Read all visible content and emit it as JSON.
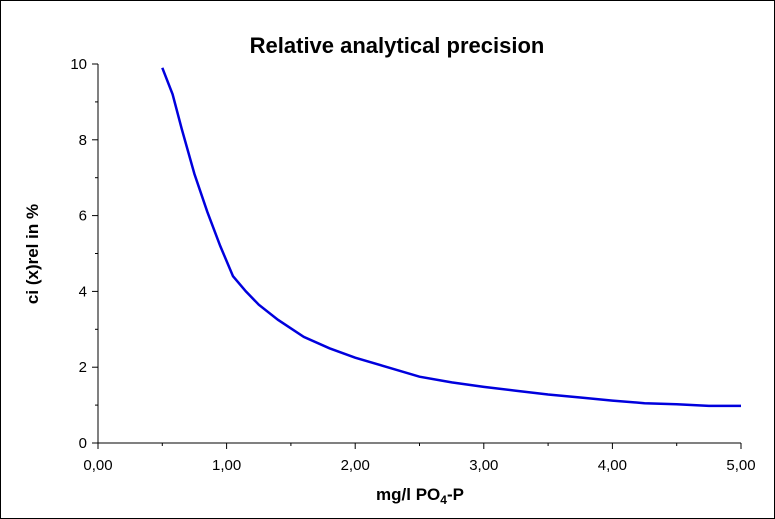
{
  "chart_data": {
    "type": "line",
    "title": "Relative analytical precision",
    "xlabel": "mg/l PO4-P",
    "xlabel_parts": {
      "main": "mg/l PO",
      "sub": "4",
      "tail": "-P"
    },
    "ylabel": "ci (x)rel in %",
    "xlim": [
      0,
      5
    ],
    "ylim": [
      0,
      10
    ],
    "x_ticks": [
      0,
      1,
      2,
      3,
      4,
      5
    ],
    "x_tick_labels": [
      "0,00",
      "1,00",
      "2,00",
      "3,00",
      "4,00",
      "5,00"
    ],
    "y_ticks": [
      0,
      2,
      4,
      6,
      8,
      10
    ],
    "y_tick_labels": [
      "0",
      "2",
      "4",
      "6",
      "8",
      "10"
    ],
    "grid": false,
    "legend": "none",
    "line_color": "#0000dd",
    "series": [
      {
        "x": [
          0.5,
          0.58,
          0.65,
          0.75,
          0.85,
          0.95,
          1.05,
          1.15,
          1.25,
          1.4,
          1.6,
          1.8,
          2.0,
          2.25,
          2.5,
          2.75,
          3.0,
          3.25,
          3.5,
          3.75,
          4.0,
          4.25,
          4.5,
          4.75,
          5.0
        ],
        "y": [
          9.9,
          9.2,
          8.3,
          7.1,
          6.1,
          5.2,
          4.4,
          4.0,
          3.65,
          3.25,
          2.8,
          2.5,
          2.25,
          2.0,
          1.75,
          1.6,
          1.48,
          1.38,
          1.28,
          1.2,
          1.12,
          1.05,
          1.02,
          0.98,
          0.98
        ]
      }
    ]
  }
}
